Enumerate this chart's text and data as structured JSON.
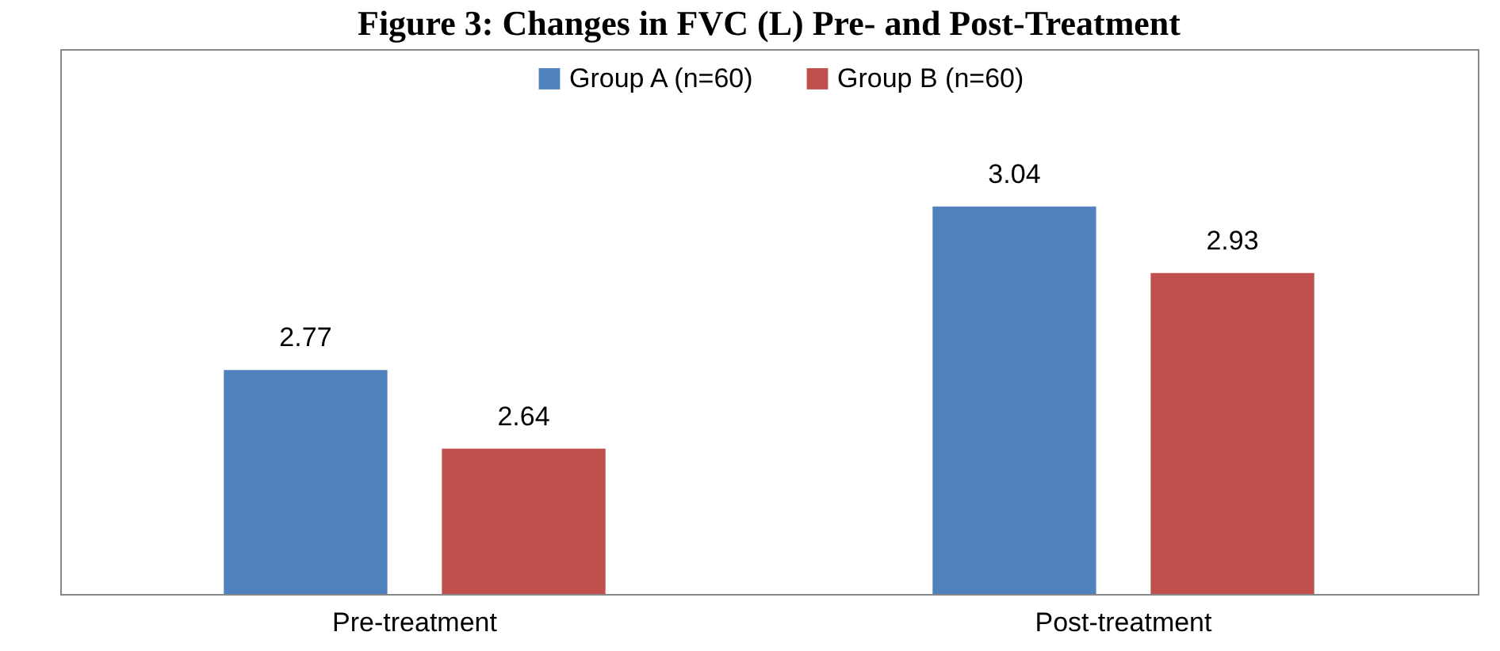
{
  "chart_data": {
    "type": "bar",
    "title": "Figure 3: Changes in FVC (L) Pre- and Post-Treatment",
    "categories": [
      "Pre-treatment",
      "Post-treatment"
    ],
    "series": [
      {
        "name": "Group A (n=60)",
        "color": "#4f81bd",
        "values": [
          2.77,
          3.04
        ]
      },
      {
        "name": "Group B (n=60)",
        "color": "#c0504d",
        "values": [
          2.64,
          2.93
        ]
      }
    ],
    "ylim": [
      2.4,
      3.3
    ],
    "data_labels": true,
    "legend": "top",
    "grid": false,
    "tick_labels": "x"
  }
}
